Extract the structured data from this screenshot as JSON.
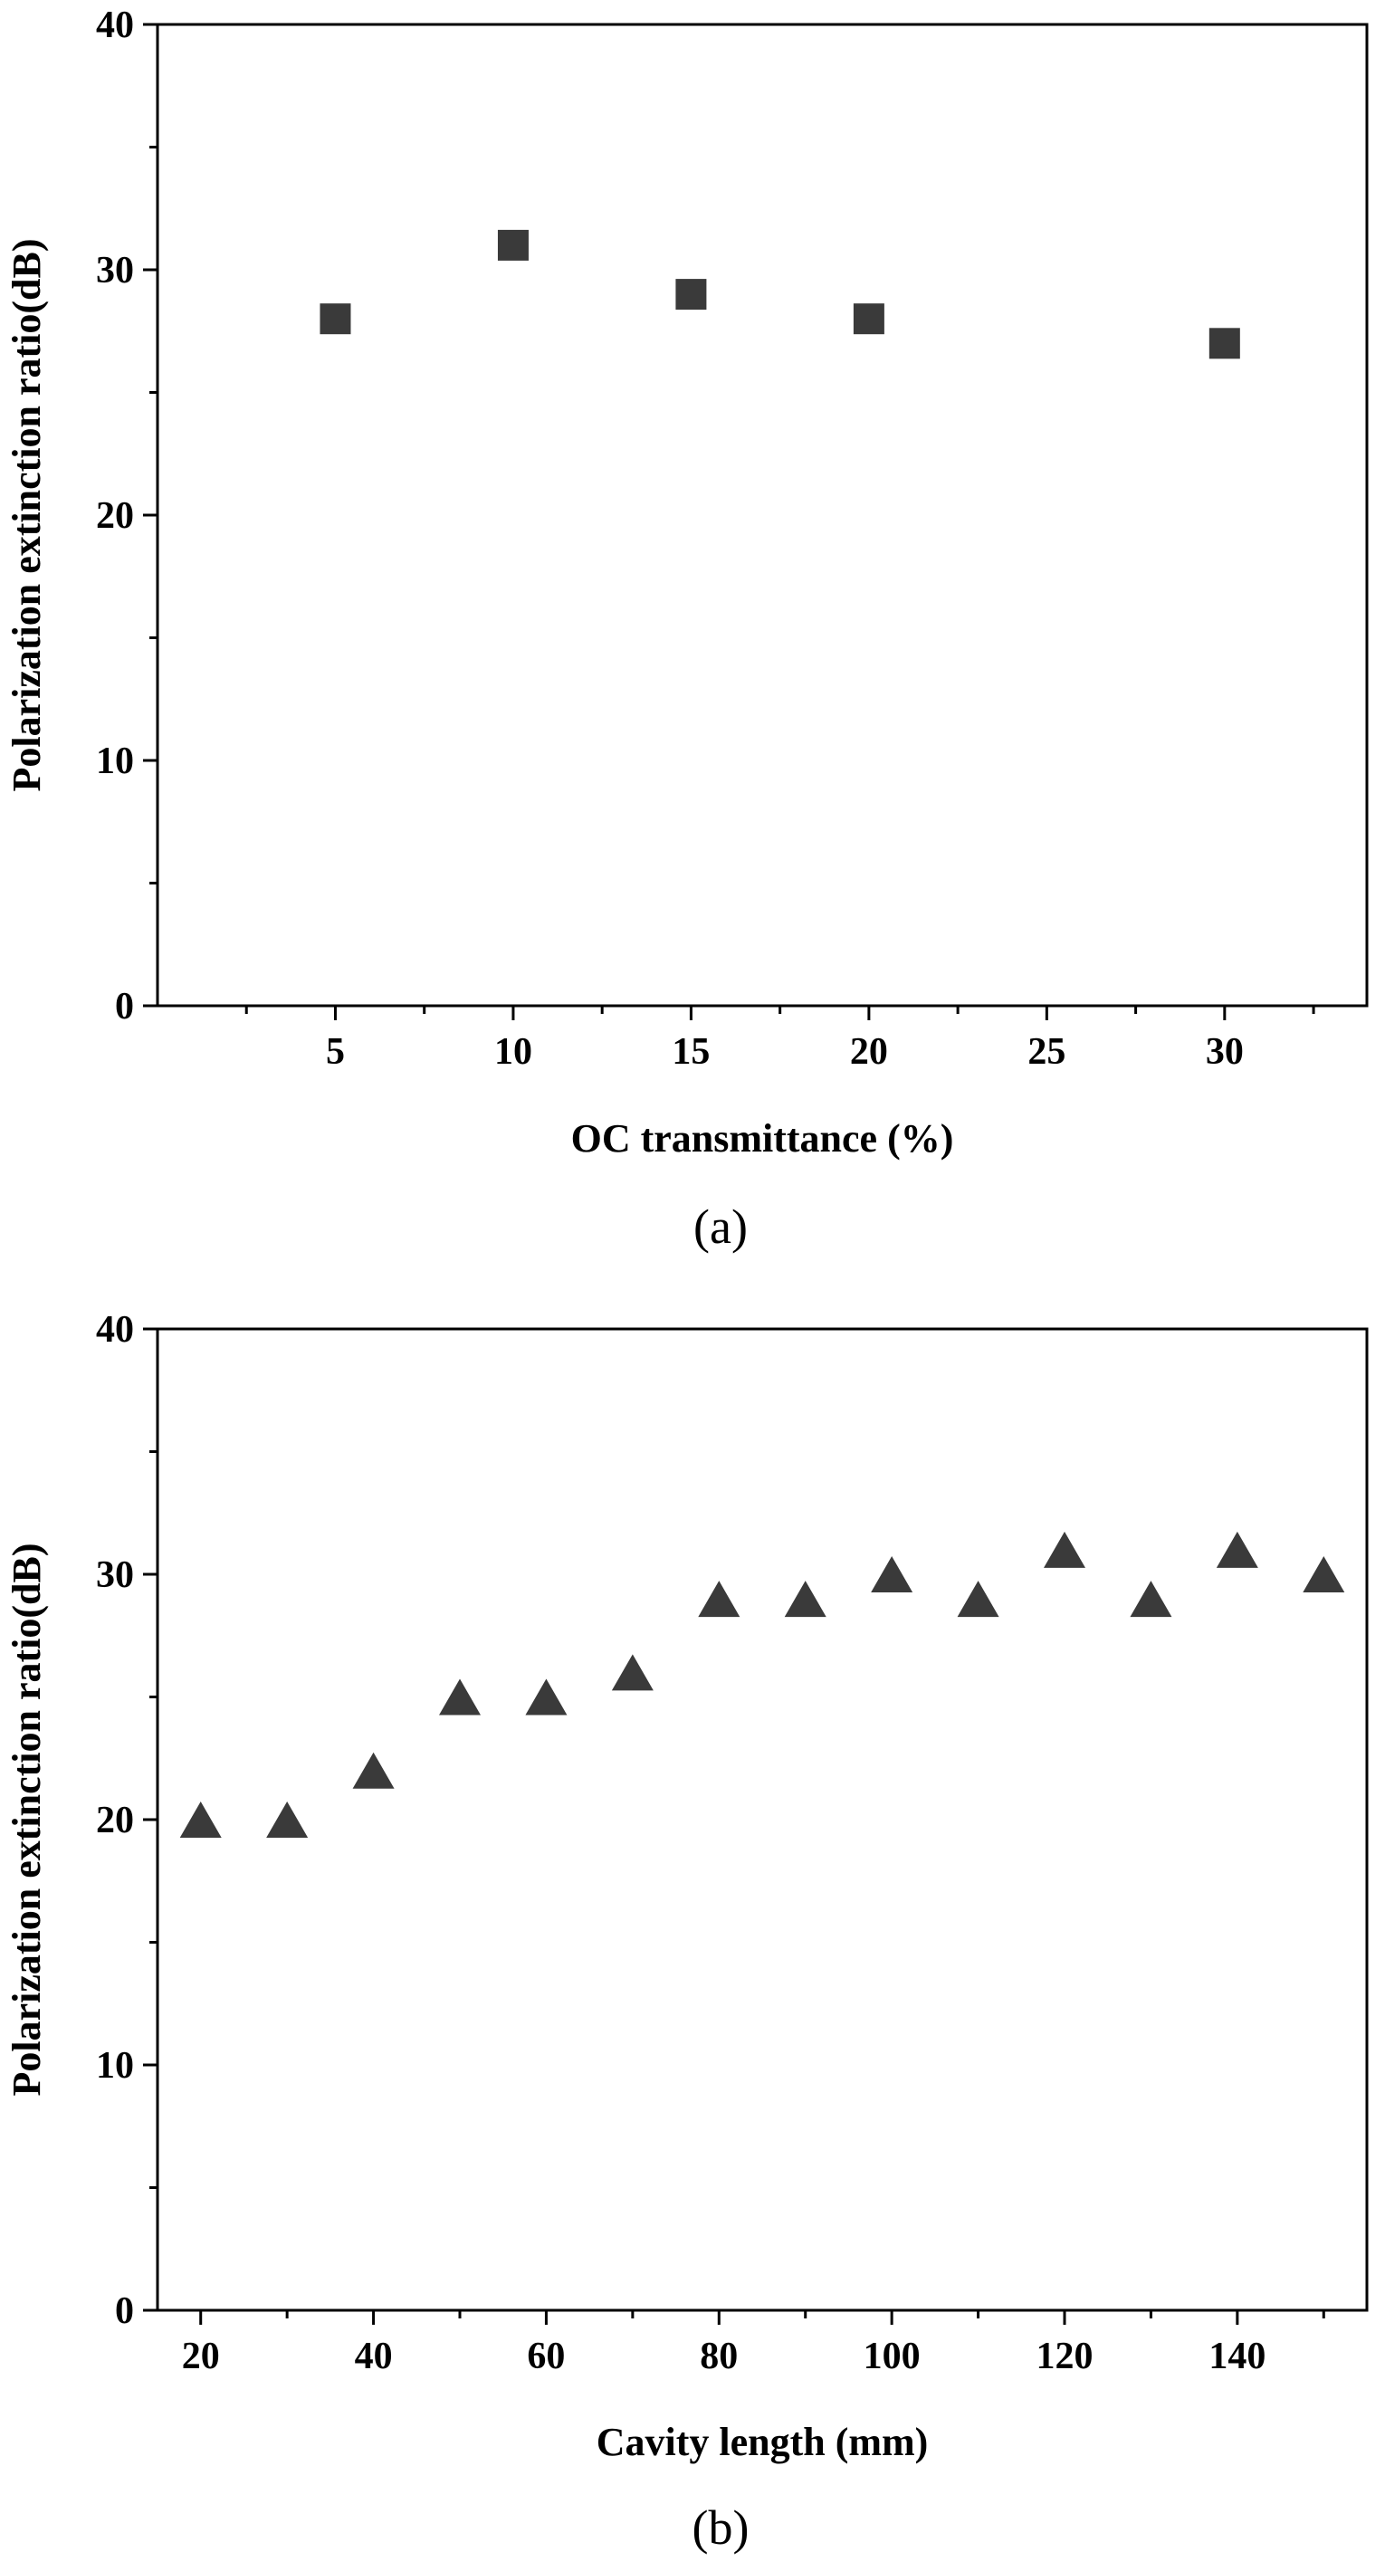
{
  "colors": {
    "marker": "#3a3a3a",
    "axis": "#000000",
    "background": "#ffffff"
  },
  "chart_data": [
    {
      "type": "scatter",
      "panel_label": "(a)",
      "xlabel": "OC transmittance (%)",
      "ylabel": "Polarization extinction ratio(dB)",
      "marker": "square",
      "xlim": [
        0,
        34
      ],
      "ylim": [
        0,
        40
      ],
      "xticks": [
        5,
        10,
        15,
        20,
        25,
        30
      ],
      "xtick_labels": [
        "5",
        "10",
        "15",
        "20",
        "25",
        "30"
      ],
      "yticks": [
        0,
        10,
        20,
        30,
        40
      ],
      "ytick_labels": [
        "0",
        "10",
        "20",
        "30",
        "40"
      ],
      "grid": false,
      "series": [
        {
          "x": [
            5,
            10,
            15,
            20,
            30
          ],
          "y": [
            28,
            31,
            29,
            28,
            27
          ]
        }
      ]
    },
    {
      "type": "scatter",
      "panel_label": "(b)",
      "xlabel": "Cavity length (mm)",
      "ylabel": "Polarization extinction ratio(dB)",
      "marker": "triangle",
      "xlim": [
        15,
        155
      ],
      "ylim": [
        0,
        40
      ],
      "xticks": [
        20,
        40,
        60,
        80,
        100,
        120,
        140
      ],
      "xtick_labels": [
        "20",
        "40",
        "60",
        "80",
        "100",
        "120",
        "140"
      ],
      "yticks": [
        0,
        10,
        20,
        30,
        40
      ],
      "ytick_labels": [
        "0",
        "10",
        "20",
        "30",
        "40"
      ],
      "grid": false,
      "series": [
        {
          "x": [
            20,
            30,
            40,
            50,
            60,
            70,
            80,
            90,
            100,
            110,
            120,
            130,
            140,
            150
          ],
          "y": [
            20,
            20,
            22,
            25,
            25,
            26,
            29,
            29,
            30,
            29,
            31,
            29,
            31,
            30
          ]
        }
      ]
    }
  ]
}
